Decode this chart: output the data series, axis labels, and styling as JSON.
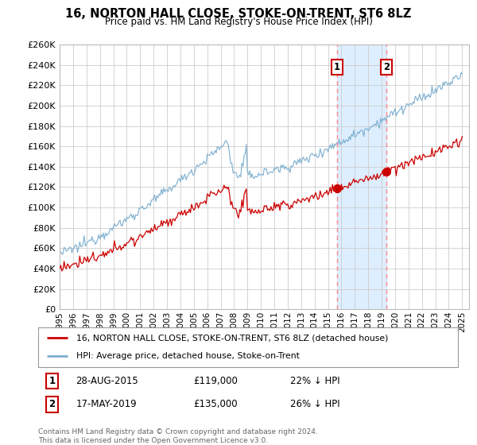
{
  "title": "16, NORTON HALL CLOSE, STOKE-ON-TRENT, ST6 8LZ",
  "subtitle": "Price paid vs. HM Land Registry's House Price Index (HPI)",
  "legend_label_red": "16, NORTON HALL CLOSE, STOKE-ON-TRENT, ST6 8LZ (detached house)",
  "legend_label_blue": "HPI: Average price, detached house, Stoke-on-Trent",
  "annotation1_date": "28-AUG-2015",
  "annotation1_price": "£119,000",
  "annotation1_pct": "22% ↓ HPI",
  "annotation2_date": "17-MAY-2019",
  "annotation2_price": "£135,000",
  "annotation2_pct": "26% ↓ HPI",
  "footer": "Contains HM Land Registry data © Crown copyright and database right 2024.\nThis data is licensed under the Open Government Licence v3.0.",
  "sale1_year": 2015.65,
  "sale1_price": 119000,
  "sale2_year": 2019.37,
  "sale2_price": 135000,
  "ylim_min": 0,
  "ylim_max": 260000,
  "ytick_step": 20000,
  "background_color": "#ffffff",
  "plot_bg_color": "#ffffff",
  "grid_color": "#cccccc",
  "red_color": "#cc0000",
  "blue_color": "#7aadcf",
  "span_color": "#ddeeff",
  "vline_color": "#ff8888",
  "annotation_box_color": "#cc0000"
}
